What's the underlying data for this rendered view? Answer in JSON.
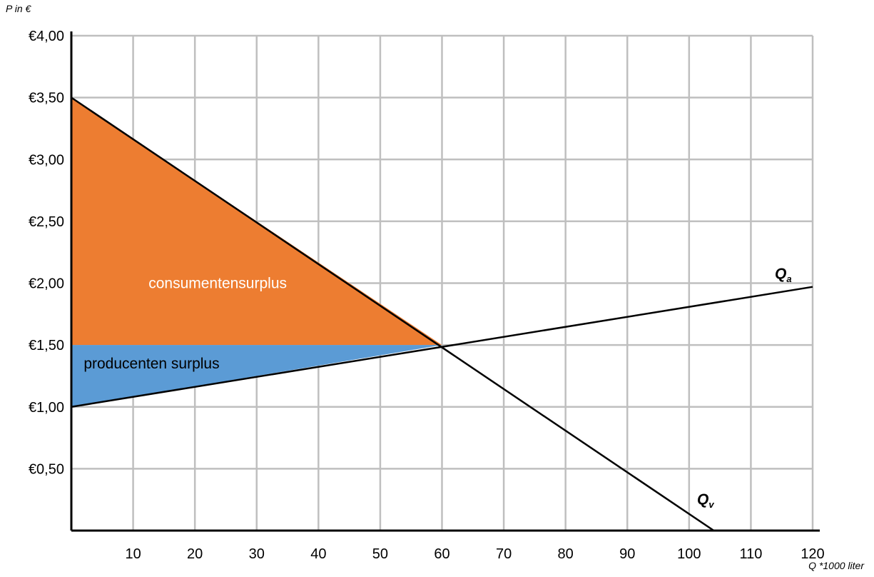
{
  "chart_data": {
    "type": "line",
    "ylabel": "P in €",
    "xlabel": "Q *1000 liter",
    "xlim": [
      0,
      120
    ],
    "ylim": [
      0,
      4
    ],
    "grid": true,
    "x_ticks": [
      10,
      20,
      30,
      40,
      50,
      60,
      70,
      80,
      90,
      100,
      110,
      120
    ],
    "x_tick_labels": [
      "10",
      "20",
      "30",
      "40",
      "50",
      "60",
      "70",
      "80",
      "90",
      "100",
      "110",
      "120"
    ],
    "y_ticks": [
      0.5,
      1.0,
      1.5,
      2.0,
      2.5,
      3.0,
      3.5,
      4.0
    ],
    "y_tick_labels": [
      "€0,50",
      "€1,00",
      "€1,50",
      "€2,00",
      "€2,50",
      "€3,00",
      "€3,50",
      "€4,00"
    ],
    "series": [
      {
        "name": "Qa",
        "label_main": "Q",
        "label_sub": "a",
        "x": [
          0,
          120
        ],
        "y": [
          1.0,
          1.97
        ],
        "color": "#000000"
      },
      {
        "name": "Qv",
        "label_main": "Q",
        "label_sub": "v",
        "x": [
          0,
          104
        ],
        "y": [
          3.5,
          0.0
        ],
        "color": "#000000"
      }
    ],
    "areas": [
      {
        "name": "consumentensurplus",
        "label": "consumentensurplus",
        "points": [
          [
            0,
            3.5
          ],
          [
            0,
            1.5
          ],
          [
            60,
            1.5
          ]
        ],
        "color": "#ED7D31",
        "text_color": "#ffffff"
      },
      {
        "name": "producentensurplus",
        "label": "producenten surplus",
        "points": [
          [
            0,
            1.5
          ],
          [
            60,
            1.5
          ],
          [
            0,
            1.0
          ]
        ],
        "color": "#5B9BD5",
        "text_color": "#000000"
      }
    ],
    "equilibrium": {
      "x": 60,
      "y": 1.5
    }
  }
}
